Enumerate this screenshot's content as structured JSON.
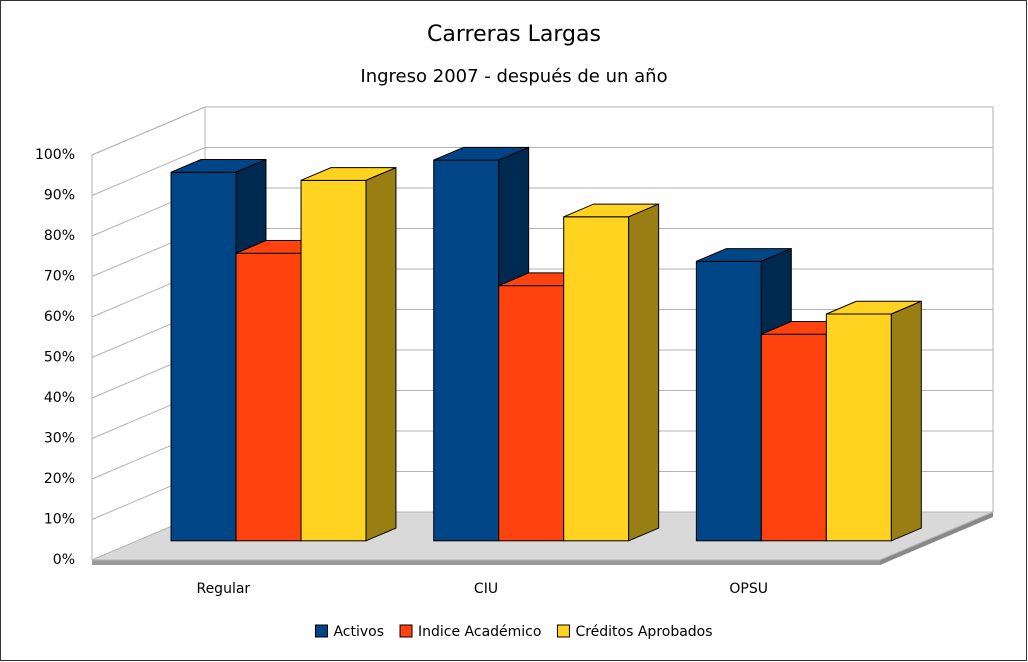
{
  "chart_data": {
    "type": "bar3d",
    "title": "Carreras Largas",
    "subtitle": "Ingreso 2007 - después de un año",
    "categories": [
      "Regular",
      "CIU",
      "OPSU"
    ],
    "series": [
      {
        "name": "Activos",
        "color": "#004586",
        "values": [
          91,
          94,
          69
        ]
      },
      {
        "name": "Indice Académico",
        "color": "#ff420e",
        "values": [
          71,
          63,
          51
        ]
      },
      {
        "name": "Créditos Aprobados",
        "color": "#ffd320",
        "values": [
          89,
          80,
          56
        ]
      }
    ],
    "ylim": [
      0,
      100
    ],
    "yticks": [
      {
        "value": 0,
        "label": "0%"
      },
      {
        "value": 10,
        "label": "10%"
      },
      {
        "value": 20,
        "label": "20%"
      },
      {
        "value": 30,
        "label": "30%"
      },
      {
        "value": 40,
        "label": "40%"
      },
      {
        "value": 50,
        "label": "50%"
      },
      {
        "value": 60,
        "label": "60%"
      },
      {
        "value": 70,
        "label": "70%"
      },
      {
        "value": 80,
        "label": "80%"
      },
      {
        "value": 90,
        "label": "90%"
      },
      {
        "value": 100,
        "label": "100%"
      }
    ],
    "grid": true,
    "legend": "bottom"
  }
}
